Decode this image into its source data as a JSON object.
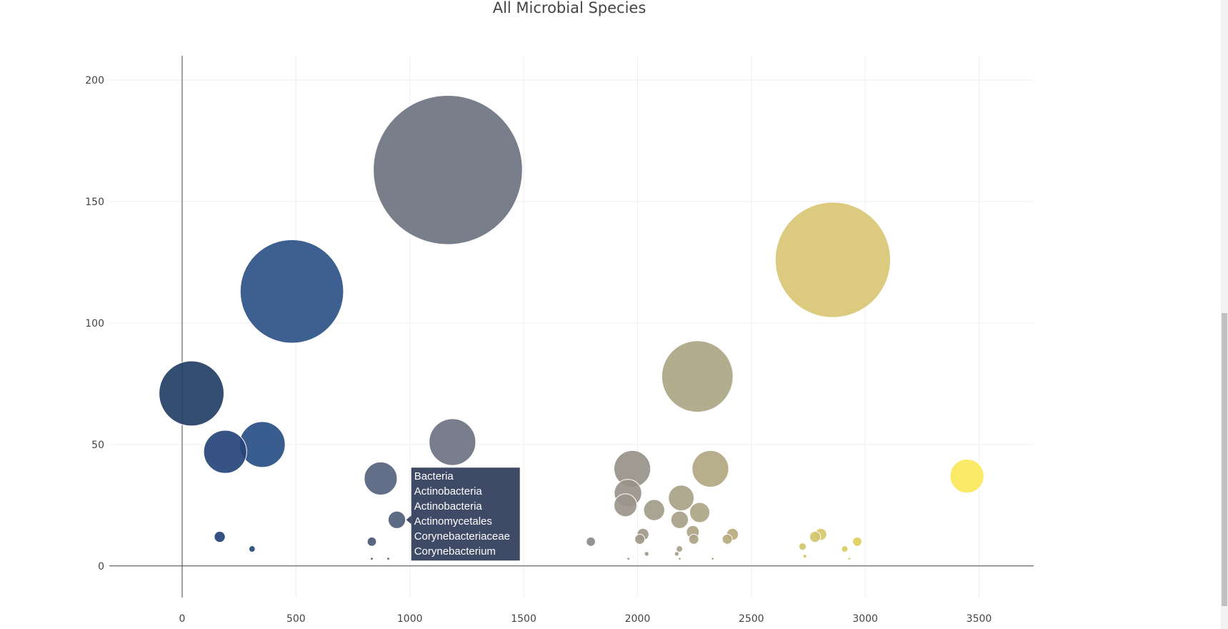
{
  "chart_data": {
    "type": "scatter",
    "title": "All Microbial Species",
    "xlabel": "",
    "ylabel": "",
    "xlim": [
      -320,
      3740
    ],
    "ylim": [
      -13,
      210
    ],
    "xticks": [
      0,
      500,
      1000,
      1500,
      2000,
      2500,
      3000,
      3500
    ],
    "yticks": [
      0,
      50,
      100,
      150,
      200
    ],
    "grid": true,
    "colorscale": "cividis",
    "points": [
      {
        "x": 41,
        "y": 71,
        "size": 71,
        "color": "#233f66"
      },
      {
        "x": 189,
        "y": 47,
        "size": 47,
        "color": "#254479"
      },
      {
        "x": 352,
        "y": 50,
        "size": 50,
        "color": "#294f86"
      },
      {
        "x": 482,
        "y": 113,
        "size": 113,
        "color": "#2d5287"
      },
      {
        "x": 165,
        "y": 12,
        "size": 12,
        "color": "#234277"
      },
      {
        "x": 307,
        "y": 7,
        "size": 7,
        "color": "#284a7f"
      },
      {
        "x": 833,
        "y": 10,
        "size": 10,
        "color": "#495875"
      },
      {
        "x": 872,
        "y": 36,
        "size": 36,
        "color": "#56637f"
      },
      {
        "x": 943,
        "y": 19,
        "size": 19,
        "color": "#505e79"
      },
      {
        "x": 1167,
        "y": 163,
        "size": 163,
        "color": "#6e7381"
      },
      {
        "x": 1187,
        "y": 51,
        "size": 51,
        "color": "#6e7382"
      },
      {
        "x": 1795,
        "y": 10,
        "size": 10,
        "color": "#8a8a8a"
      },
      {
        "x": 1977,
        "y": 40,
        "size": 40,
        "color": "#979289"
      },
      {
        "x": 1958,
        "y": 30,
        "size": 30,
        "color": "#99938a"
      },
      {
        "x": 1947,
        "y": 25,
        "size": 25,
        "color": "#9b958b"
      },
      {
        "x": 2010,
        "y": 11,
        "size": 11,
        "color": "#9e978a"
      },
      {
        "x": 2024,
        "y": 13,
        "size": 13,
        "color": "#9f988b"
      },
      {
        "x": 2073,
        "y": 23,
        "size": 23,
        "color": "#a29c89"
      },
      {
        "x": 2185,
        "y": 19,
        "size": 19,
        "color": "#a8a086"
      },
      {
        "x": 2192,
        "y": 28,
        "size": 28,
        "color": "#a9a185"
      },
      {
        "x": 2243,
        "y": 14,
        "size": 14,
        "color": "#aca386"
      },
      {
        "x": 2247,
        "y": 11,
        "size": 11,
        "color": "#aca386"
      },
      {
        "x": 2263,
        "y": 78,
        "size": 78,
        "color": "#ada686"
      },
      {
        "x": 2273,
        "y": 22,
        "size": 22,
        "color": "#aea585"
      },
      {
        "x": 2320,
        "y": 40,
        "size": 40,
        "color": "#b1a782"
      },
      {
        "x": 2394,
        "y": 11,
        "size": 11,
        "color": "#b6ab7f"
      },
      {
        "x": 2417,
        "y": 13,
        "size": 13,
        "color": "#b8ac7e"
      },
      {
        "x": 2184,
        "y": 7,
        "size": 7,
        "color": "#a8a086"
      },
      {
        "x": 2040,
        "y": 5,
        "size": 5,
        "color": "#a0998a"
      },
      {
        "x": 2172,
        "y": 5,
        "size": 5,
        "color": "#a79f87"
      },
      {
        "x": 2725,
        "y": 8,
        "size": 8,
        "color": "#d2c46a"
      },
      {
        "x": 2780,
        "y": 12,
        "size": 12,
        "color": "#d4c66b"
      },
      {
        "x": 2805,
        "y": 13,
        "size": 13,
        "color": "#d6c86b"
      },
      {
        "x": 2858,
        "y": 126,
        "size": 126,
        "color": "#d9c774"
      },
      {
        "x": 2910,
        "y": 7,
        "size": 7,
        "color": "#dccc62"
      },
      {
        "x": 2965,
        "y": 10,
        "size": 10,
        "color": "#dfce5e"
      },
      {
        "x": 3447,
        "y": 37,
        "size": 37,
        "color": "#fbe85a"
      },
      {
        "x": 2735,
        "y": 4,
        "size": 4,
        "color": "#d3c56a"
      },
      {
        "x": 2930,
        "y": 3,
        "size": 3,
        "color": "#ddcd60"
      },
      {
        "x": 833,
        "y": 3,
        "size": 3,
        "color": "#495875"
      },
      {
        "x": 905,
        "y": 3,
        "size": 3,
        "color": "#4f5d78"
      },
      {
        "x": 1960,
        "y": 3,
        "size": 3,
        "color": "#999389"
      },
      {
        "x": 2185,
        "y": 3,
        "size": 3,
        "color": "#a8a086"
      },
      {
        "x": 2330,
        "y": 3,
        "size": 3,
        "color": "#b1a782"
      }
    ],
    "hover": {
      "x": 943,
      "y": 19,
      "color": "#3f4a66",
      "lines": [
        "Bacteria",
        "Actinobacteria",
        "Actinobacteria",
        "Actinomycetales",
        "Corynebacteriaceae",
        "Corynebacterium"
      ]
    }
  }
}
